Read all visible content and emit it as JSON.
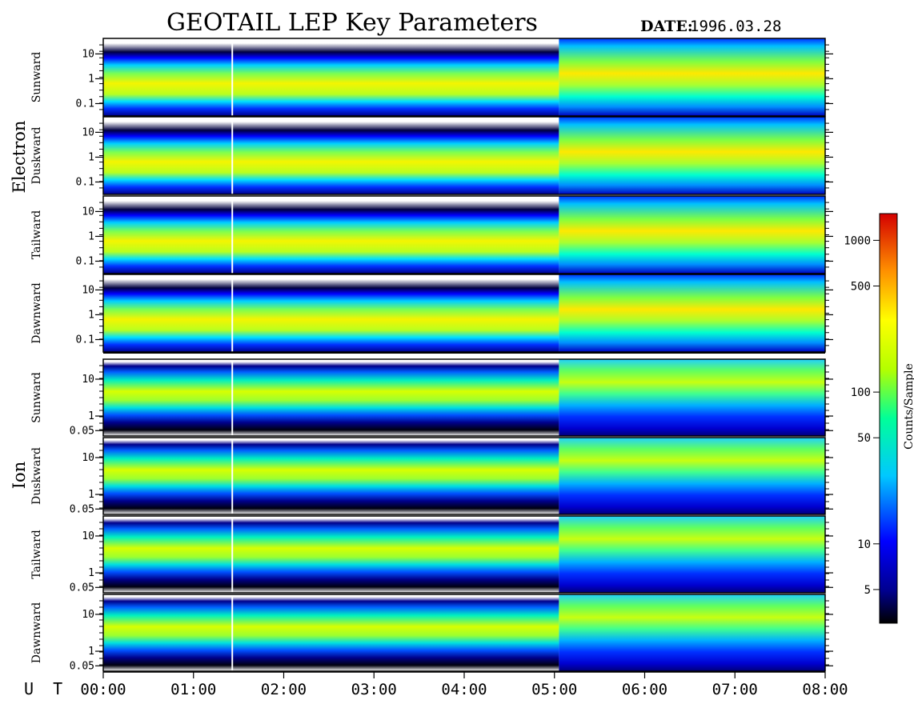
{
  "chart_data": {
    "type": "heatmap",
    "title": "GEOTAIL LEP Key Parameters",
    "date_label": "DATE:",
    "date_value": "1996.03.28",
    "x_axis_label": "U T",
    "x_ticks": [
      "00:00",
      "01:00",
      "02:00",
      "03:00",
      "04:00",
      "05:00",
      "06:00",
      "07:00",
      "08:00"
    ],
    "x_range_hours": [
      0,
      8
    ],
    "groups": [
      {
        "name": "Electron",
        "panels": [
          {
            "name": "Sunward",
            "y_ticks": [
              "10",
              "1",
              "0.1"
            ]
          },
          {
            "name": "Duskward",
            "y_ticks": [
              "10",
              "1",
              "0.1"
            ]
          },
          {
            "name": "Tailward",
            "y_ticks": [
              "10",
              "1",
              "0.1"
            ]
          },
          {
            "name": "Dawnward",
            "y_ticks": [
              "10",
              "1",
              "0.1"
            ]
          }
        ]
      },
      {
        "name": "Ion",
        "panels": [
          {
            "name": "Sunward",
            "y_ticks": [
              "10",
              "1",
              "0.05"
            ]
          },
          {
            "name": "Duskward",
            "y_ticks": [
              "10",
              "1",
              "0.05"
            ]
          },
          {
            "name": "Tailward",
            "y_ticks": [
              "10",
              "1",
              "0.05"
            ]
          },
          {
            "name": "Dawnward",
            "y_ticks": [
              "10",
              "1",
              "0.05"
            ]
          }
        ]
      }
    ],
    "colorbar": {
      "label": "Counts/Sample",
      "scale": "log",
      "range": [
        3,
        1500
      ],
      "ticks": [
        {
          "value": 1000,
          "label": "1000"
        },
        {
          "value": 500,
          "label": "500"
        },
        {
          "value": 100,
          "label": "100"
        },
        {
          "value": 50,
          "label": "50"
        },
        {
          "value": 10,
          "label": "10"
        },
        {
          "value": 5,
          "label": "5"
        }
      ]
    },
    "regime_change_hour": 5.05
  }
}
